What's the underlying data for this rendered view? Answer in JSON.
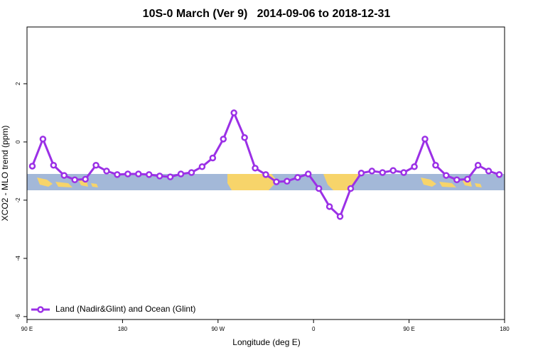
{
  "chart_data": {
    "type": "line",
    "title": "10S-0 March (Ver 9)   2014-09-06 to 2018-12-31",
    "x_label": "Longitude (deg E)",
    "y_label": "XCO2 - MLO trend (ppm)",
    "x": [
      95,
      105,
      115,
      125,
      135,
      145,
      155,
      165,
      175,
      185,
      195,
      205,
      215,
      225,
      235,
      245,
      255,
      265,
      275,
      285,
      295,
      305,
      315,
      325,
      335,
      345,
      355,
      365,
      375,
      385,
      395,
      405,
      415,
      425,
      435,
      445,
      455,
      465,
      475,
      485,
      495,
      505,
      515,
      525,
      535
    ],
    "series": [
      {
        "name": "Land (Nadir&Glint) and Ocean (Glint)",
        "color": "#9b30e6",
        "values": [
          -0.83,
          0.1,
          -0.8,
          -1.15,
          -1.3,
          -1.28,
          -0.8,
          -1.0,
          -1.12,
          -1.1,
          -1.1,
          -1.12,
          -1.17,
          -1.2,
          -1.1,
          -1.05,
          -0.85,
          -0.55,
          0.1,
          1.0,
          0.15,
          -0.9,
          -1.12,
          -1.37,
          -1.35,
          -1.22,
          -1.1,
          -1.6,
          -2.22,
          -2.56,
          -1.6,
          -1.07,
          -1.0,
          -1.05,
          -0.98,
          -1.05,
          -0.85,
          0.1,
          -0.8,
          -1.15,
          -1.3,
          -1.28,
          -0.8,
          -1.0,
          -1.12
        ]
      }
    ],
    "xlim": [
      90,
      540
    ],
    "xticks": [
      {
        "value": 90,
        "label": "90 E"
      },
      {
        "value": 180,
        "label": "180"
      },
      {
        "value": 270,
        "label": "90 W"
      },
      {
        "value": 360,
        "label": "0"
      },
      {
        "value": 450,
        "label": "90 E"
      },
      {
        "value": 540,
        "label": "180"
      }
    ],
    "ylim": [
      -6.1,
      3.95
    ],
    "yticks": [
      2,
      0,
      -2,
      -4,
      -6
    ],
    "legend": "bottom-left"
  }
}
